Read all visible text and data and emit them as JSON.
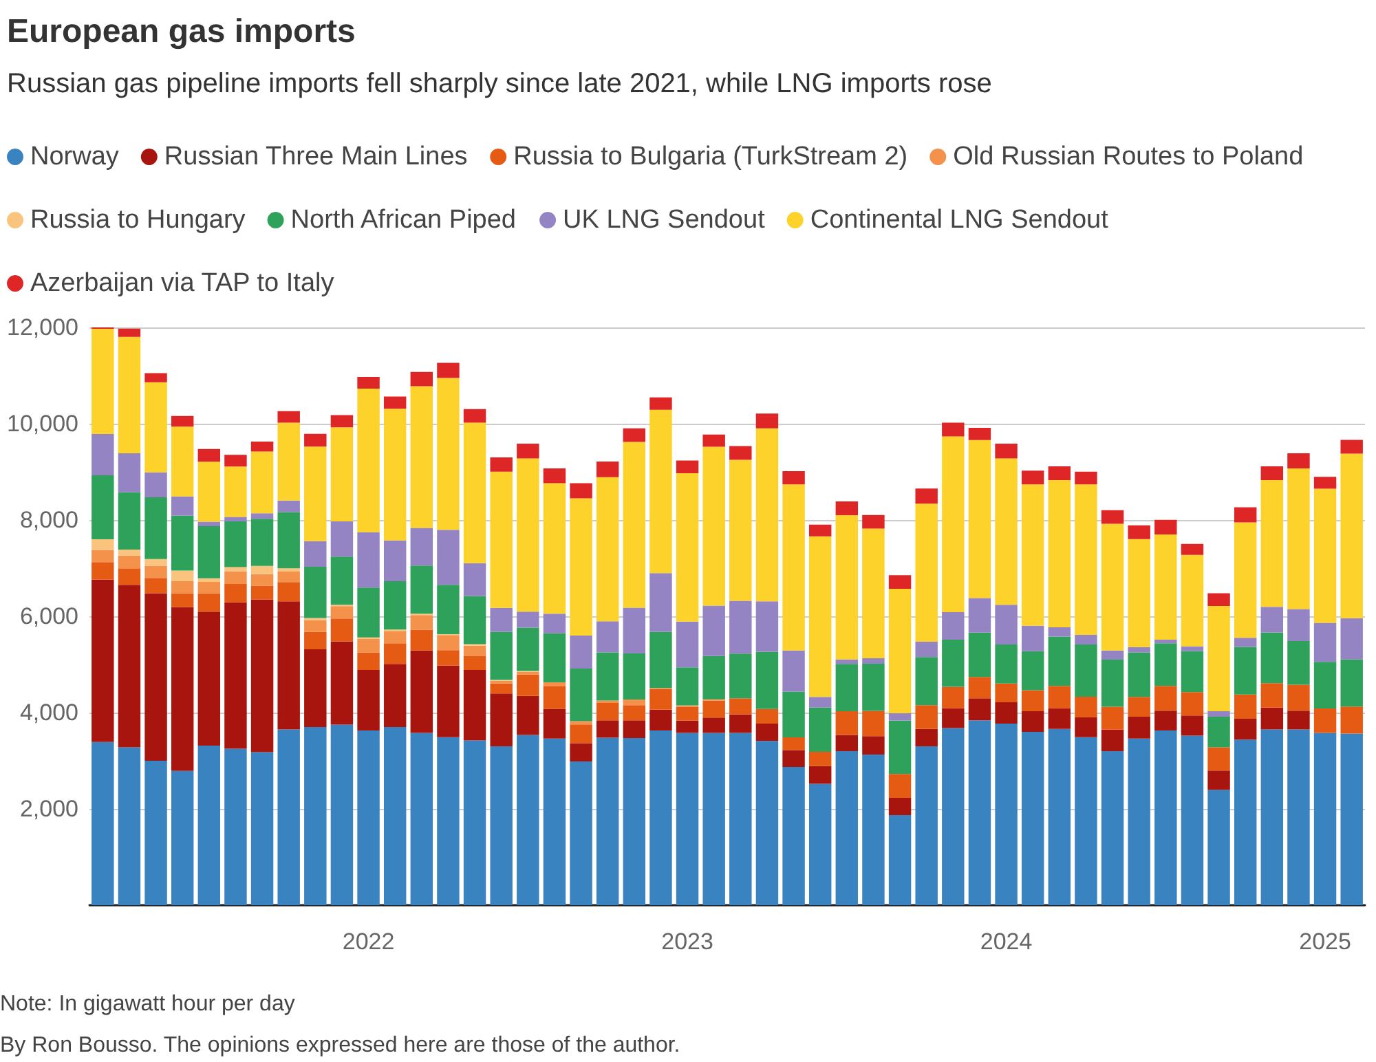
{
  "chart_data": {
    "type": "bar",
    "stacked": true,
    "title": "European gas imports",
    "subtitle": "Russian gas pipeline imports fell sharply since late 2021, while LNG imports rose",
    "annotations": [
      "Note: In gigawatt hour per day",
      "By Ron Bousso. The opinions expressed here are those of the author."
    ],
    "legend": "top left",
    "grid": "y",
    "categories": [
      null,
      null,
      null,
      null,
      null,
      null,
      null,
      null,
      null,
      null,
      "2022",
      null,
      null,
      null,
      null,
      null,
      null,
      null,
      null,
      null,
      null,
      null,
      "2023",
      null,
      null,
      null,
      null,
      null,
      null,
      null,
      null,
      null,
      null,
      null,
      "2024",
      null,
      null,
      null,
      null,
      null,
      null,
      null,
      null,
      null,
      null,
      null,
      "2025",
      null
    ],
    "ylim": [
      0,
      12000
    ],
    "yticks": [
      {
        "value": 0,
        "label": null
      },
      {
        "value": 2000,
        "label": "2,000"
      },
      {
        "value": 4000,
        "label": "4,000"
      },
      {
        "value": 6000,
        "label": "6,000"
      },
      {
        "value": 8000,
        "label": "8,000"
      },
      {
        "value": 10000,
        "label": "10,000"
      },
      {
        "value": 12000,
        "label": "12,000"
      }
    ],
    "series": [
      {
        "name": "Norway",
        "color": "#3a83c1",
        "values": [
          3390,
          3280,
          3000,
          2790,
          3315,
          3250,
          3180,
          3650,
          3700,
          3750,
          3630,
          3700,
          3580,
          3490,
          3420,
          3300,
          3535,
          3460,
          2985,
          3480,
          3470,
          3630,
          3580,
          3580,
          3580,
          3410,
          2870,
          2520,
          3200,
          3130,
          1870,
          3300,
          3680,
          3840,
          3770,
          3600,
          3660,
          3490,
          3200,
          3460,
          3630,
          3520,
          2395,
          3440,
          3650,
          3650,
          3580,
          3565
        ]
      },
      {
        "name": "Russian Three Main Lines",
        "color": "#a8150e",
        "values": [
          3375,
          3375,
          3480,
          3400,
          2780,
          3040,
          3170,
          2660,
          1615,
          1730,
          1255,
          1310,
          1710,
          1490,
          1465,
          1095,
          810,
          620,
          380,
          360,
          370,
          430,
          255,
          315,
          380,
          360,
          350,
          370,
          335,
          380,
          360,
          360,
          410,
          455,
          445,
          430,
          430,
          410,
          445,
          455,
          410,
          420,
          400,
          430,
          455,
          390,
          0,
          0
        ]
      },
      {
        "name": "Russia to Bulgaria (TurkStream 2)",
        "color": "#e55b14",
        "values": [
          360,
          340,
          315,
          285,
          380,
          380,
          285,
          400,
          360,
          475,
          360,
          430,
          430,
          315,
          285,
          210,
          445,
          475,
          390,
          360,
          315,
          430,
          285,
          350,
          335,
          305,
          265,
          295,
          495,
          525,
          495,
          495,
          445,
          445,
          390,
          435,
          465,
          430,
          475,
          410,
          515,
          485,
          485,
          505,
          505,
          540,
          505,
          560
        ]
      },
      {
        "name": "Old Russian Routes to Poland",
        "color": "#f4914b",
        "values": [
          255,
          265,
          255,
          255,
          240,
          265,
          240,
          220,
          240,
          255,
          285,
          255,
          305,
          315,
          220,
          55,
          55,
          75,
          65,
          50,
          115,
          20,
          30,
          30,
          0,
          0,
          0,
          0,
          0,
          0,
          0,
          0,
          0,
          0,
          0,
          0,
          0,
          0,
          0,
          0,
          0,
          0,
          0,
          0,
          0,
          0,
          0,
          0
        ]
      },
      {
        "name": "Russia to Hungary",
        "color": "#fbc47e",
        "values": [
          220,
          125,
          140,
          220,
          75,
          85,
          170,
          65,
          50,
          30,
          30,
          30,
          30,
          20,
          30,
          20,
          20,
          0,
          0,
          0,
          0,
          0,
          0,
          0,
          null,
          0,
          0,
          null,
          0,
          0,
          null,
          0,
          0,
          0,
          0,
          0,
          null,
          0,
          0,
          null,
          0,
          0,
          null,
          null,
          0,
          0,
          0,
          0
        ]
      },
      {
        "name": "North African Piped",
        "color": "#2ea25a",
        "values": [
          1330,
          1190,
          1280,
          1140,
          1080,
          950,
          980,
          1170,
          1065,
          1000,
          1035,
          1005,
          1000,
          1025,
          1000,
          1000,
          900,
          1015,
          1095,
          1000,
          960,
          1170,
          790,
          900,
          930,
          1190,
          950,
          920,
          980,
          980,
          1110,
          1000,
          980,
          920,
          810,
          810,
          1025,
          1085,
          980,
          920,
          885,
          855,
          635,
          990,
          1055,
          905,
          970,
          980
        ]
      },
      {
        "name": "UK LNG Sendout",
        "color": "#9584c4",
        "values": [
          855,
          810,
          520,
          400,
          95,
          95,
          115,
          240,
          530,
          730,
          1150,
          845,
          780,
          1140,
          685,
          495,
          330,
          410,
          685,
          645,
          950,
          1215,
          950,
          1045,
          1095,
          1045,
          855,
          220,
          95,
          115,
          150,
          315,
          570,
          720,
          825,
          530,
          190,
          200,
          190,
          115,
          75,
          95,
          115,
          190,
          530,
          665,
          810,
          855
        ]
      },
      {
        "name": "Continental LNG Sendout",
        "color": "#fdd22b",
        "values": [
          2185,
          2420,
          1870,
          1450,
          1245,
          1045,
          1280,
          1615,
          1965,
          1955,
          2985,
          2735,
          2945,
          3155,
          2915,
          2830,
          3185,
          2710,
          2850,
          2995,
          3440,
          3395,
          3080,
          3300,
          2930,
          3595,
          3450,
          3335,
          2995,
          2690,
          2585,
          2870,
          3650,
          3280,
          3040,
          2935,
          3060,
          3125,
          2630,
          2245,
          2185,
          1900,
          2185,
          2395,
          2635,
          2920,
          2785,
          3420
        ]
      },
      {
        "name": "Azerbaijan via TAP to Italy",
        "color": "#de2626",
        "values": [
          75,
          170,
          190,
          220,
          265,
          245,
          210,
          240,
          265,
          255,
          240,
          255,
          295,
          315,
          285,
          295,
          305,
          305,
          315,
          325,
          285,
          255,
          265,
          255,
          285,
          305,
          275,
          245,
          285,
          285,
          285,
          315,
          285,
          255,
          305,
          285,
          285,
          265,
          285,
          285,
          305,
          230,
          265,
          315,
          285,
          315,
          245,
          285
        ]
      }
    ]
  }
}
